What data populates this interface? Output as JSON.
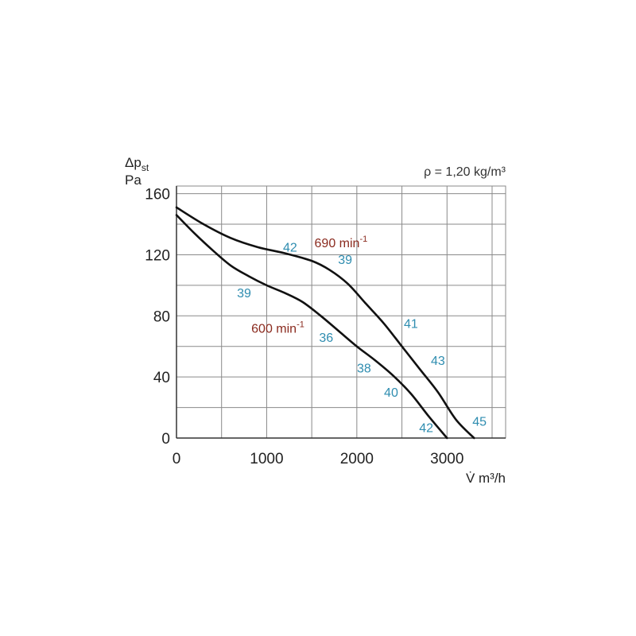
{
  "chart_data": {
    "type": "line",
    "title": "",
    "xlabel": "V̇ m³/h",
    "ylabel_main": "Δp",
    "ylabel_sub": "st",
    "ylabel_unit": "Pa",
    "density_note": "ρ = 1,20 kg/m³",
    "xlim": [
      0,
      3650
    ],
    "ylim": [
      0,
      165
    ],
    "x_ticks": [
      0,
      1000,
      2000,
      3000
    ],
    "y_ticks": [
      0,
      40,
      80,
      120,
      160
    ],
    "grid": true,
    "series": [
      {
        "name": "690 min-1",
        "label_main": "690 min",
        "label_sup": "-1",
        "x": [
          0,
          300,
          600,
          900,
          1200,
          1500,
          1700,
          1900,
          2100,
          2300,
          2500,
          2700,
          2900,
          3100,
          3300
        ],
        "y": [
          151,
          140,
          131,
          125,
          121,
          116,
          110,
          101,
          88,
          75,
          60,
          45,
          30,
          12,
          0
        ],
        "noise_levels": [
          {
            "x": 1260,
            "y": 122,
            "value": "42"
          },
          {
            "x": 1870,
            "y": 114,
            "value": "39"
          },
          {
            "x": 2600,
            "y": 72,
            "value": "41"
          },
          {
            "x": 2900,
            "y": 48,
            "value": "43"
          },
          {
            "x": 3360,
            "y": 8,
            "value": "45"
          }
        ]
      },
      {
        "name": "600 min-1",
        "label_main": "600 min",
        "label_sup": "-1",
        "x": [
          0,
          200,
          400,
          600,
          800,
          1000,
          1200,
          1400,
          1600,
          1800,
          2000,
          2200,
          2400,
          2600,
          2800,
          3000
        ],
        "y": [
          146,
          134,
          123,
          113,
          106,
          100,
          95,
          89,
          80,
          70,
          60,
          51,
          41,
          29,
          14,
          0
        ],
        "noise_levels": [
          {
            "x": 750,
            "y": 92,
            "value": "39"
          },
          {
            "x": 1660,
            "y": 63,
            "value": "36"
          },
          {
            "x": 2080,
            "y": 43,
            "value": "38"
          },
          {
            "x": 2380,
            "y": 27,
            "value": "40"
          },
          {
            "x": 2770,
            "y": 4,
            "value": "42"
          }
        ]
      }
    ],
    "series_label_positions": [
      {
        "series": "690 min-1",
        "x": 1530,
        "y": 125
      },
      {
        "series": "600 min-1",
        "x": 830,
        "y": 69
      }
    ]
  },
  "colors": {
    "curve": "#111111",
    "grid": "#8a8a8a",
    "noise_label": "#2f8db0",
    "speed_label": "#8a2a1e"
  }
}
